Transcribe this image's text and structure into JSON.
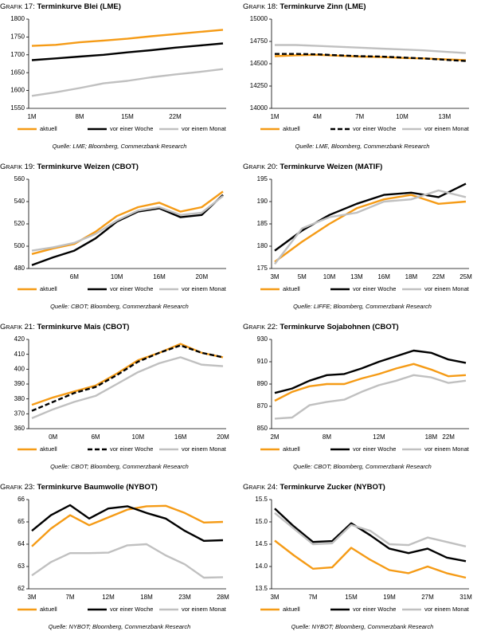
{
  "chart_data": [
    {
      "type": "line",
      "label": "Grafik 17:",
      "title": "Terminkurve Blei (LME)",
      "source": "Quelle: LME; Bloomberg, Commerzbank Research",
      "categories": [
        "1M",
        null,
        "8M",
        null,
        "15M",
        null,
        "22M",
        null,
        null
      ],
      "series": [
        {
          "name": "aktuell",
          "color": "#f59b16",
          "style": "solid",
          "values": [
            1725,
            1728,
            1735,
            1740,
            1745,
            1752,
            1758,
            1764,
            1770
          ]
        },
        {
          "name": "vor einer Woche",
          "color": "#000000",
          "style": "solid",
          "values": [
            1685,
            1690,
            1695,
            1700,
            1707,
            1713,
            1720,
            1726,
            1732
          ]
        },
        {
          "name": "vor einem Monat",
          "color": "#c0c0c0",
          "style": "solid",
          "values": [
            1585,
            1595,
            1607,
            1620,
            1627,
            1637,
            1645,
            1652,
            1660
          ]
        }
      ],
      "ylim": [
        1550,
        1800
      ],
      "yticks": [
        1550,
        1600,
        1650,
        1700,
        1750,
        1800
      ]
    },
    {
      "type": "line",
      "label": "Grafik 18:",
      "title": "Terminkurve Zinn (LME)",
      "source": "Quelle: LME, Bloomberg, Commerzbank Research",
      "categories": [
        "1M",
        null,
        "4M",
        null,
        "7M",
        null,
        "10M",
        null,
        "13M",
        null
      ],
      "series": [
        {
          "name": "aktuell",
          "color": "#f59b16",
          "style": "solid",
          "values": [
            14585,
            14595,
            14600,
            14590,
            14580,
            14575,
            14565,
            14560,
            14550,
            14540
          ]
        },
        {
          "name": "vor einer Woche",
          "color": "#000000",
          "style": "dashed",
          "values": [
            14610,
            14610,
            14605,
            14595,
            14585,
            14580,
            14570,
            14560,
            14545,
            14530
          ]
        },
        {
          "name": "vor einem Monat",
          "color": "#c0c0c0",
          "style": "solid",
          "values": [
            14710,
            14710,
            14700,
            14690,
            14680,
            14670,
            14660,
            14650,
            14635,
            14620
          ]
        }
      ],
      "ylim": [
        14000,
        15000
      ],
      "yticks": [
        14000,
        14250,
        14500,
        14750,
        15000
      ]
    },
    {
      "type": "line",
      "label": "Grafik 19:",
      "title": "Terminkurve Weizen (CBOT)",
      "source": "Quelle: CBOT; Bloomberg, Commerzbank Research",
      "categories": [
        null,
        null,
        "6M",
        null,
        "10M",
        null,
        "16M",
        null,
        "20M",
        null
      ],
      "series": [
        {
          "name": "aktuell",
          "color": "#f59b16",
          "style": "solid",
          "values": [
            493,
            498,
            502,
            513,
            527,
            535,
            539,
            531,
            535,
            549
          ]
        },
        {
          "name": "vor einer Woche",
          "color": "#000000",
          "style": "solid",
          "values": [
            483,
            490,
            496,
            507,
            522,
            531,
            534,
            526,
            528,
            546
          ]
        },
        {
          "name": "vor einem Monat",
          "color": "#c0c0c0",
          "style": "solid",
          "values": [
            496,
            499,
            503,
            511,
            523,
            532,
            535,
            528,
            530,
            545
          ]
        }
      ],
      "ylim": [
        480,
        560
      ],
      "yticks": [
        480,
        500,
        520,
        540,
        560
      ]
    },
    {
      "type": "line",
      "label": "Grafik 20:",
      "title": "Terminkurve Weizen (MATIF)",
      "source": "Quelle: LIFFE; Bloomberg, Commerzbank Research",
      "categories": [
        "3M",
        "5M",
        "10M",
        "13M",
        "16M",
        "18M",
        "22M",
        "25M"
      ],
      "series": [
        {
          "name": "aktuell",
          "color": "#f59b16",
          "style": "solid",
          "values": [
            176.5,
            181,
            185,
            188.5,
            190.5,
            191.5,
            189.5,
            190
          ]
        },
        {
          "name": "vor einer Woche",
          "color": "#000000",
          "style": "solid",
          "values": [
            179,
            183.5,
            187,
            189.5,
            191.5,
            192,
            191,
            194
          ]
        },
        {
          "name": "vor einem Monat",
          "color": "#c0c0c0",
          "style": "solid",
          "values": [
            176,
            184,
            186.5,
            187.5,
            190,
            190.5,
            192.5,
            191
          ]
        }
      ],
      "ylim": [
        175,
        195
      ],
      "yticks": [
        175,
        180,
        185,
        190,
        195
      ]
    },
    {
      "type": "line",
      "label": "Grafik 21:",
      "title": "Terminkurve Mais (CBOT)",
      "source": "Quelle: CBOT; Bloomberg, Commerzbank Research",
      "categories": [
        null,
        "0M",
        null,
        "6M",
        null,
        "10M",
        null,
        "16M",
        null,
        "20M"
      ],
      "series": [
        {
          "name": "aktuell",
          "color": "#f59b16",
          "style": "solid",
          "values": [
            376,
            381,
            385,
            389,
            397,
            406,
            411,
            417,
            411,
            408
          ]
        },
        {
          "name": "vor einer Woche",
          "color": "#000000",
          "style": "dashed",
          "values": [
            372,
            378,
            384,
            388,
            396,
            405,
            411,
            416,
            411,
            408
          ]
        },
        {
          "name": "vor einem Monat",
          "color": "#c0c0c0",
          "style": "solid",
          "values": [
            367,
            373,
            378,
            382,
            390,
            398,
            404,
            408,
            403,
            402
          ]
        }
      ],
      "ylim": [
        360,
        420
      ],
      "yticks": [
        360,
        370,
        380,
        390,
        400,
        410,
        420
      ]
    },
    {
      "type": "line",
      "label": "Grafik 22:",
      "title": "Terminkurve Sojabohnen (CBOT)",
      "source": "Quelle: CBOT; Bloomberg, Commerzbank Research",
      "categories": [
        "2M",
        null,
        null,
        "8M",
        null,
        null,
        "12M",
        null,
        null,
        "18M",
        "22M",
        null
      ],
      "series": [
        {
          "name": "aktuell",
          "color": "#f59b16",
          "style": "solid",
          "values": [
            875,
            883,
            888,
            890,
            890,
            895,
            899,
            904,
            908,
            903,
            897,
            898
          ]
        },
        {
          "name": "vor einer Woche",
          "color": "#000000",
          "style": "solid",
          "values": [
            882,
            886,
            893,
            898,
            899,
            904,
            910,
            915,
            920,
            918,
            912,
            909
          ]
        },
        {
          "name": "vor einem Monat",
          "color": "#c0c0c0",
          "style": "solid",
          "values": [
            859,
            860,
            871,
            874,
            876,
            883,
            889,
            893,
            898,
            896,
            891,
            893
          ]
        }
      ],
      "ylim": [
        850,
        930
      ],
      "yticks": [
        850,
        870,
        890,
        910,
        930
      ]
    },
    {
      "type": "line",
      "label": "Grafik 23:",
      "title": "Terminkurve Baumwolle (NYBOT)",
      "source": "Quelle: NYBOT; Bloomberg, Commerzbank Research",
      "categories": [
        "3M",
        null,
        "7M",
        null,
        "12M",
        null,
        "18M",
        null,
        "23M",
        null,
        "28M"
      ],
      "series": [
        {
          "name": "aktuell",
          "color": "#f59b16",
          "style": "solid",
          "values": [
            63.9,
            64.7,
            65.3,
            64.85,
            65.2,
            65.55,
            65.7,
            65.72,
            65.4,
            64.97,
            65.0
          ]
        },
        {
          "name": "vor einer Woche",
          "color": "#000000",
          "style": "solid",
          "values": [
            64.6,
            65.3,
            65.75,
            65.15,
            65.6,
            65.7,
            65.4,
            65.15,
            64.6,
            64.15,
            64.18
          ]
        },
        {
          "name": "vor einem Monat",
          "color": "#c0c0c0",
          "style": "solid",
          "values": [
            62.6,
            63.2,
            63.6,
            63.6,
            63.62,
            63.95,
            64.0,
            63.5,
            63.1,
            62.5,
            62.52
          ]
        }
      ],
      "ylim": [
        62,
        66
      ],
      "yticks": [
        62,
        63,
        64,
        65,
        66
      ]
    },
    {
      "type": "line",
      "label": "Grafik 24:",
      "title": "Terminkurve Zucker (NYBOT)",
      "source": "Quelle: NYBOT; Bloomberg, Commerzbank Research",
      "categories": [
        "3M",
        null,
        "7M",
        null,
        "15M",
        null,
        "19M",
        null,
        "27M",
        null,
        "31M"
      ],
      "series": [
        {
          "name": "aktuell",
          "color": "#f59b16",
          "style": "solid",
          "values": [
            14.58,
            14.25,
            13.95,
            13.98,
            14.42,
            14.15,
            13.92,
            13.85,
            14.0,
            13.85,
            13.75
          ]
        },
        {
          "name": "vor einer Woche",
          "color": "#000000",
          "style": "solid",
          "values": [
            15.3,
            14.9,
            14.55,
            14.57,
            14.97,
            14.7,
            14.4,
            14.3,
            14.4,
            14.2,
            14.12
          ]
        },
        {
          "name": "vor einem Monat",
          "color": "#c0c0c0",
          "style": "solid",
          "values": [
            15.2,
            14.85,
            14.5,
            14.52,
            14.93,
            14.8,
            14.5,
            14.48,
            14.65,
            14.55,
            14.45
          ]
        }
      ],
      "ylim": [
        13.5,
        15.5
      ],
      "yticks": [
        13.5,
        {
          "value": 14,
          "label": "14.0"
        },
        14.5,
        {
          "value": 15,
          "label": "15.0"
        },
        15.5
      ]
    }
  ]
}
